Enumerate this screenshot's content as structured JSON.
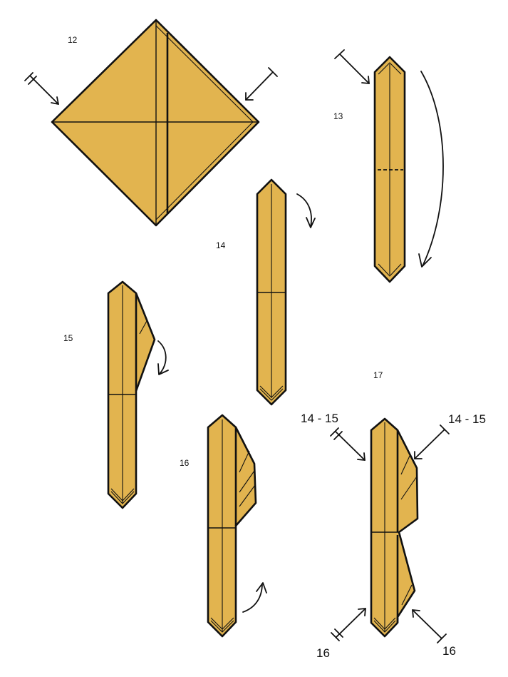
{
  "colors": {
    "paper": "#E2B44F",
    "ink": "#111111",
    "background": "#FFFFFF"
  },
  "steps": [
    {
      "label": "12"
    },
    {
      "label": "13"
    },
    {
      "label": "14"
    },
    {
      "label": "15"
    },
    {
      "label": "16"
    },
    {
      "label": "17"
    }
  ],
  "refs": {
    "top_left": "14 - 15",
    "top_right": "14 - 15",
    "bottom_left": "16",
    "bottom_right": "16"
  },
  "icons": {
    "fold_arrow": "curved-arrow-icon",
    "push_arrow": "double-tick-push-arrow-icon",
    "mountain_arrow": "single-tick-push-arrow-icon"
  }
}
